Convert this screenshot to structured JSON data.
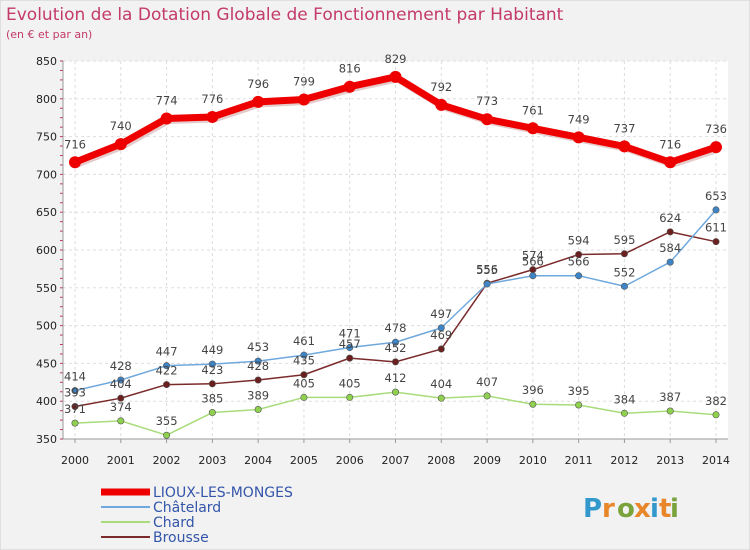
{
  "title": "Evolution de la Dotation Globale de Fonctionnement par Habitant",
  "subtitle": "(en € et par an)",
  "logo": {
    "text": "Proxiti",
    "colors": [
      "#3399cc",
      "#e8862a",
      "#7aa33c",
      "#e8862a",
      "#3399cc",
      "#e8862a",
      "#7aa33c"
    ]
  },
  "chart_data": {
    "type": "line",
    "x": [
      "2000",
      "2001",
      "2002",
      "2003",
      "2004",
      "2005",
      "2006",
      "2007",
      "2008",
      "2009",
      "2010",
      "2011",
      "2012",
      "2013",
      "2014"
    ],
    "ylim": [
      350,
      850
    ],
    "yticks": [
      350,
      400,
      450,
      500,
      550,
      600,
      650,
      700,
      750,
      800,
      850
    ],
    "grid": true,
    "legend_position": "bottom-left",
    "series": [
      {
        "name": "LIOUX-LES-MONGES",
        "color": "#ee0000",
        "width": 7,
        "marker": 6,
        "values": [
          716,
          740,
          774,
          776,
          796,
          799,
          816,
          829,
          792,
          773,
          761,
          749,
          737,
          716,
          736
        ]
      },
      {
        "name": "Châtelard",
        "color": "#6fa8dc",
        "width": 1.5,
        "marker": 3.2,
        "markerFill": "#3d85c6",
        "values": [
          414,
          428,
          447,
          449,
          453,
          461,
          471,
          478,
          497,
          555,
          566,
          566,
          552,
          584,
          653
        ]
      },
      {
        "name": "Chard",
        "color": "#a8dc7a",
        "width": 1.5,
        "marker": 3.2,
        "markerFill": "#8fd14f",
        "values": [
          371,
          374,
          355,
          385,
          389,
          405,
          405,
          412,
          404,
          407,
          396,
          395,
          384,
          387,
          382
        ]
      },
      {
        "name": "Brousse",
        "color": "#7a2a2a",
        "width": 1.5,
        "marker": 3.2,
        "markerFill": "#6b1f1f",
        "values": [
          393,
          404,
          422,
          423,
          428,
          435,
          457,
          452,
          469,
          556,
          574,
          594,
          595,
          624,
          611
        ]
      }
    ]
  }
}
